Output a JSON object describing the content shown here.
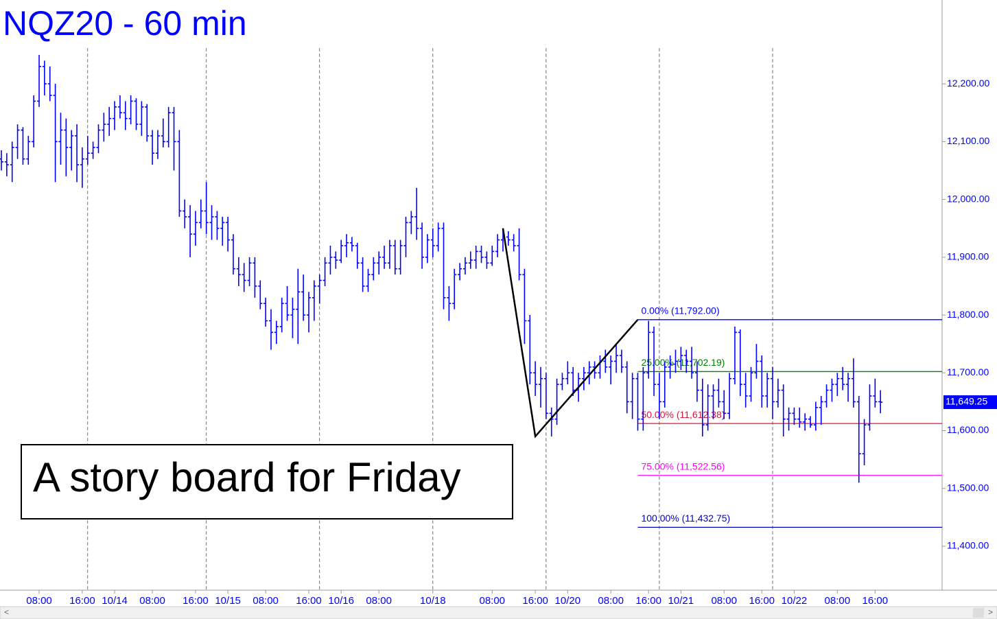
{
  "chart_data": {
    "type": "ohlc",
    "title": "NQZ20 - 60 min",
    "color": "#0000ff",
    "ylim": [
      11324,
      12345
    ],
    "yticks": [
      {
        "value": 11400,
        "label": "11,400.00"
      },
      {
        "value": 11500,
        "label": "11,500.00"
      },
      {
        "value": 11600,
        "label": "11,600.00"
      },
      {
        "value": 11700,
        "label": "11,700.00"
      },
      {
        "value": 11800,
        "label": "11,800.00"
      },
      {
        "value": 11900,
        "label": "11,900.00"
      },
      {
        "value": 12000,
        "label": "12,000.00"
      },
      {
        "value": 12100,
        "label": "12,100.00"
      },
      {
        "value": 12200,
        "label": "12,200.00"
      }
    ],
    "xlim": [
      0,
      174
    ],
    "xticks": [
      {
        "value": 7,
        "label": "08:00"
      },
      {
        "value": 15,
        "label": "16:00"
      },
      {
        "value": 21,
        "label": "10/14"
      },
      {
        "value": 28,
        "label": "08:00"
      },
      {
        "value": 36,
        "label": "16:00"
      },
      {
        "value": 42,
        "label": "10/15"
      },
      {
        "value": 49,
        "label": "08:00"
      },
      {
        "value": 57,
        "label": "16:00"
      },
      {
        "value": 63,
        "label": "10/16"
      },
      {
        "value": 70,
        "label": "08:00"
      },
      {
        "value": 80,
        "label": "10/18"
      },
      {
        "value": 91,
        "label": "08:00"
      },
      {
        "value": 99,
        "label": "16:00"
      },
      {
        "value": 105,
        "label": "10/20"
      },
      {
        "value": 113,
        "label": "08:00"
      },
      {
        "value": 120,
        "label": "16:00"
      },
      {
        "value": 126,
        "label": "10/21"
      },
      {
        "value": 134,
        "label": "08:00"
      },
      {
        "value": 141,
        "label": "16:00"
      },
      {
        "value": 147,
        "label": "10/22"
      },
      {
        "value": 155,
        "label": "08:00"
      },
      {
        "value": 162,
        "label": "16:00"
      }
    ],
    "xgrid": [
      16,
      38,
      59,
      80,
      101,
      122,
      143
    ],
    "bars": [
      [
        12070,
        12085,
        12050,
        12065
      ],
      [
        12065,
        12080,
        12040,
        12060
      ],
      [
        12060,
        12100,
        12030,
        12090
      ],
      [
        12090,
        12130,
        12070,
        12120
      ],
      [
        12120,
        12125,
        12060,
        12070
      ],
      [
        12070,
        12110,
        12060,
        12100
      ],
      [
        12100,
        12180,
        12090,
        12170
      ],
      [
        12170,
        12250,
        12160,
        12230
      ],
      [
        12230,
        12240,
        12180,
        12200
      ],
      [
        12200,
        12230,
        12170,
        12180
      ],
      [
        12180,
        12200,
        12030,
        12100
      ],
      [
        12100,
        12150,
        12060,
        12120
      ],
      [
        12120,
        12140,
        12040,
        12090
      ],
      [
        12090,
        12120,
        12050,
        12110
      ],
      [
        12110,
        12130,
        12030,
        12060
      ],
      [
        12060,
        12090,
        12020,
        12070
      ],
      [
        12070,
        12110,
        12060,
        12080
      ],
      [
        12080,
        12100,
        12070,
        12090
      ],
      [
        12090,
        12130,
        12080,
        12120
      ],
      [
        12120,
        12150,
        12100,
        12130
      ],
      [
        12130,
        12160,
        12110,
        12140
      ],
      [
        12140,
        12170,
        12120,
        12160
      ],
      [
        12160,
        12180,
        12140,
        12150
      ],
      [
        12150,
        12170,
        12120,
        12140
      ],
      [
        12140,
        12180,
        12130,
        12170
      ],
      [
        12170,
        12175,
        12120,
        12130
      ],
      [
        12130,
        12170,
        12110,
        12160
      ],
      [
        12160,
        12165,
        12100,
        12110
      ],
      [
        12110,
        12120,
        12060,
        12080
      ],
      [
        12080,
        12120,
        12070,
        12110
      ],
      [
        12110,
        12140,
        12090,
        12100
      ],
      [
        12100,
        12160,
        12090,
        12150
      ],
      [
        12150,
        12160,
        12050,
        12100
      ],
      [
        12100,
        12120,
        11970,
        11980
      ],
      [
        11980,
        12000,
        11950,
        11970
      ],
      [
        11970,
        11990,
        11900,
        11940
      ],
      [
        11940,
        11980,
        11920,
        11960
      ],
      [
        11960,
        12000,
        11950,
        11980
      ],
      [
        11980,
        12030,
        11940,
        11960
      ],
      [
        11960,
        11990,
        11930,
        11970
      ],
      [
        11970,
        11980,
        11930,
        11950
      ],
      [
        11950,
        11970,
        11920,
        11960
      ],
      [
        11960,
        11970,
        11910,
        11930
      ],
      [
        11930,
        11940,
        11870,
        11880
      ],
      [
        11880,
        11900,
        11850,
        11870
      ],
      [
        11870,
        11890,
        11840,
        11860
      ],
      [
        11860,
        11900,
        11850,
        11890
      ],
      [
        11890,
        11900,
        11830,
        11850
      ],
      [
        11850,
        11860,
        11810,
        11820
      ],
      [
        11820,
        11830,
        11780,
        11790
      ],
      [
        11790,
        11810,
        11740,
        11770
      ],
      [
        11770,
        11790,
        11750,
        11780
      ],
      [
        11780,
        11830,
        11770,
        11820
      ],
      [
        11820,
        11850,
        11790,
        11800
      ],
      [
        11800,
        11830,
        11760,
        11810
      ],
      [
        11810,
        11880,
        11750,
        11840
      ],
      [
        11840,
        11870,
        11790,
        11800
      ],
      [
        11800,
        11840,
        11770,
        11830
      ],
      [
        11830,
        11860,
        11790,
        11850
      ],
      [
        11850,
        11870,
        11820,
        11860
      ],
      [
        11860,
        11900,
        11850,
        11890
      ],
      [
        11890,
        11920,
        11870,
        11900
      ],
      [
        11900,
        11910,
        11880,
        11895
      ],
      [
        11895,
        11930,
        11890,
        11920
      ],
      [
        11920,
        11940,
        11900,
        11925
      ],
      [
        11925,
        11935,
        11910,
        11920
      ],
      [
        11920,
        11925,
        11880,
        11890
      ],
      [
        11890,
        11900,
        11840,
        11850
      ],
      [
        11850,
        11880,
        11840,
        11870
      ],
      [
        11870,
        11900,
        11860,
        11890
      ],
      [
        11890,
        11910,
        11870,
        11900
      ],
      [
        11900,
        11920,
        11880,
        11890
      ],
      [
        11890,
        11930,
        11880,
        11920
      ],
      [
        11920,
        11930,
        11870,
        11880
      ],
      [
        11880,
        11930,
        11870,
        11920
      ],
      [
        11920,
        11970,
        11900,
        11960
      ],
      [
        11960,
        11980,
        11940,
        11970
      ],
      [
        11970,
        12020,
        11930,
        11950
      ],
      [
        11950,
        11960,
        11880,
        11900
      ],
      [
        11900,
        11940,
        11890,
        11930
      ],
      [
        11930,
        11950,
        11900,
        11920
      ],
      [
        11920,
        11960,
        11910,
        11950
      ],
      [
        11950,
        11960,
        11810,
        11830
      ],
      [
        11830,
        11850,
        11790,
        11820
      ],
      [
        11820,
        11880,
        11810,
        11870
      ],
      [
        11870,
        11890,
        11860,
        11880
      ],
      [
        11880,
        11900,
        11870,
        11890
      ],
      [
        11890,
        11910,
        11880,
        11895
      ],
      [
        11895,
        11920,
        11880,
        11910
      ],
      [
        11910,
        11920,
        11890,
        11900
      ],
      [
        11900,
        11910,
        11880,
        11890
      ],
      [
        11890,
        11920,
        11885,
        11910
      ],
      [
        11910,
        11940,
        11900,
        11930
      ],
      [
        11930,
        11950,
        11910,
        11935
      ],
      [
        11935,
        11945,
        11920,
        11930
      ],
      [
        11930,
        11940,
        11910,
        11920
      ],
      [
        11920,
        11950,
        11860,
        11870
      ],
      [
        11870,
        11880,
        11750,
        11790
      ],
      [
        11790,
        11800,
        11680,
        11700
      ],
      [
        11700,
        11720,
        11660,
        11680
      ],
      [
        11680,
        11710,
        11640,
        11690
      ],
      [
        11690,
        11700,
        11620,
        11630
      ],
      [
        11630,
        11640,
        11590,
        11620
      ],
      [
        11620,
        11690,
        11610,
        11680
      ],
      [
        11680,
        11700,
        11670,
        11690
      ],
      [
        11690,
        11720,
        11680,
        11700
      ],
      [
        11700,
        11710,
        11660,
        11670
      ],
      [
        11670,
        11700,
        11650,
        11690
      ],
      [
        11690,
        11710,
        11670,
        11700
      ],
      [
        11700,
        11720,
        11680,
        11710
      ],
      [
        11710,
        11720,
        11690,
        11700
      ],
      [
        11700,
        11730,
        11690,
        11720
      ],
      [
        11720,
        11740,
        11700,
        11710
      ],
      [
        11710,
        11730,
        11680,
        11720
      ],
      [
        11720,
        11750,
        11700,
        11730
      ],
      [
        11730,
        11740,
        11700,
        11710
      ],
      [
        11710,
        11720,
        11630,
        11650
      ],
      [
        11650,
        11700,
        11620,
        11690
      ],
      [
        11690,
        11700,
        11600,
        11620
      ],
      [
        11620,
        11710,
        11600,
        11700
      ],
      [
        11700,
        11790,
        11690,
        11770
      ],
      [
        11770,
        11780,
        11660,
        11680
      ],
      [
        11680,
        11700,
        11620,
        11650
      ],
      [
        11650,
        11720,
        11640,
        11710
      ],
      [
        11710,
        11730,
        11690,
        11715
      ],
      [
        11715,
        11740,
        11700,
        11720
      ],
      [
        11720,
        11745,
        11705,
        11730
      ],
      [
        11730,
        11740,
        11700,
        11720
      ],
      [
        11720,
        11745,
        11690,
        11700
      ],
      [
        11700,
        11720,
        11650,
        11670
      ],
      [
        11670,
        11690,
        11590,
        11610
      ],
      [
        11610,
        11680,
        11600,
        11660
      ],
      [
        11660,
        11680,
        11620,
        11670
      ],
      [
        11670,
        11690,
        11640,
        11650
      ],
      [
        11650,
        11670,
        11620,
        11630
      ],
      [
        11630,
        11700,
        11620,
        11690
      ],
      [
        11690,
        11780,
        11680,
        11770
      ],
      [
        11770,
        11775,
        11660,
        11680
      ],
      [
        11680,
        11700,
        11640,
        11660
      ],
      [
        11660,
        11710,
        11650,
        11700
      ],
      [
        11700,
        11750,
        11690,
        11720
      ],
      [
        11720,
        11730,
        11640,
        11660
      ],
      [
        11660,
        11700,
        11640,
        11690
      ],
      [
        11690,
        11710,
        11620,
        11650
      ],
      [
        11650,
        11690,
        11640,
        11670
      ],
      [
        11670,
        11680,
        11590,
        11620
      ],
      [
        11620,
        11640,
        11600,
        11630
      ],
      [
        11630,
        11640,
        11610,
        11620
      ],
      [
        11620,
        11640,
        11605,
        11615
      ],
      [
        11615,
        11630,
        11600,
        11620
      ],
      [
        11620,
        11625,
        11605,
        11610
      ],
      [
        11610,
        11650,
        11600,
        11640
      ],
      [
        11640,
        11660,
        11610,
        11650
      ],
      [
        11650,
        11680,
        11640,
        11670
      ],
      [
        11670,
        11690,
        11650,
        11680
      ],
      [
        11680,
        11700,
        11660,
        11690
      ],
      [
        11690,
        11710,
        11670,
        11680
      ],
      [
        11680,
        11700,
        11650,
        11690
      ],
      [
        11690,
        11725,
        11640,
        11650
      ],
      [
        11650,
        11660,
        11510,
        11560
      ],
      [
        11560,
        11620,
        11540,
        11610
      ],
      [
        11610,
        11680,
        11600,
        11660
      ],
      [
        11660,
        11690,
        11640,
        11650
      ],
      [
        11650,
        11670,
        11630,
        11649.25
      ]
    ],
    "pattern": {
      "x": [
        93,
        99,
        118
      ],
      "y": [
        11950,
        11590,
        11792
      ],
      "color": "#000000"
    },
    "fib_start": 118,
    "fib_levels": [
      {
        "label": "0.00% (11,792.00)",
        "value": 11792,
        "color": "#0000ff"
      },
      {
        "label": "25.00% (11,702.19)",
        "value": 11702.19,
        "color": "#008000"
      },
      {
        "label": "50.00% (11,612.38)",
        "value": 11612.38,
        "color": "#dc143c"
      },
      {
        "label": "75.00% (11,522.56)",
        "value": 11522.56,
        "color": "#ff00ff"
      },
      {
        "label": "100.00% (11,432.75)",
        "value": 11432.75,
        "color": "#0000cd"
      }
    ],
    "last_price": {
      "value": 11649.25,
      "label": "11,649.25"
    },
    "annotation": "A story board for Friday"
  }
}
